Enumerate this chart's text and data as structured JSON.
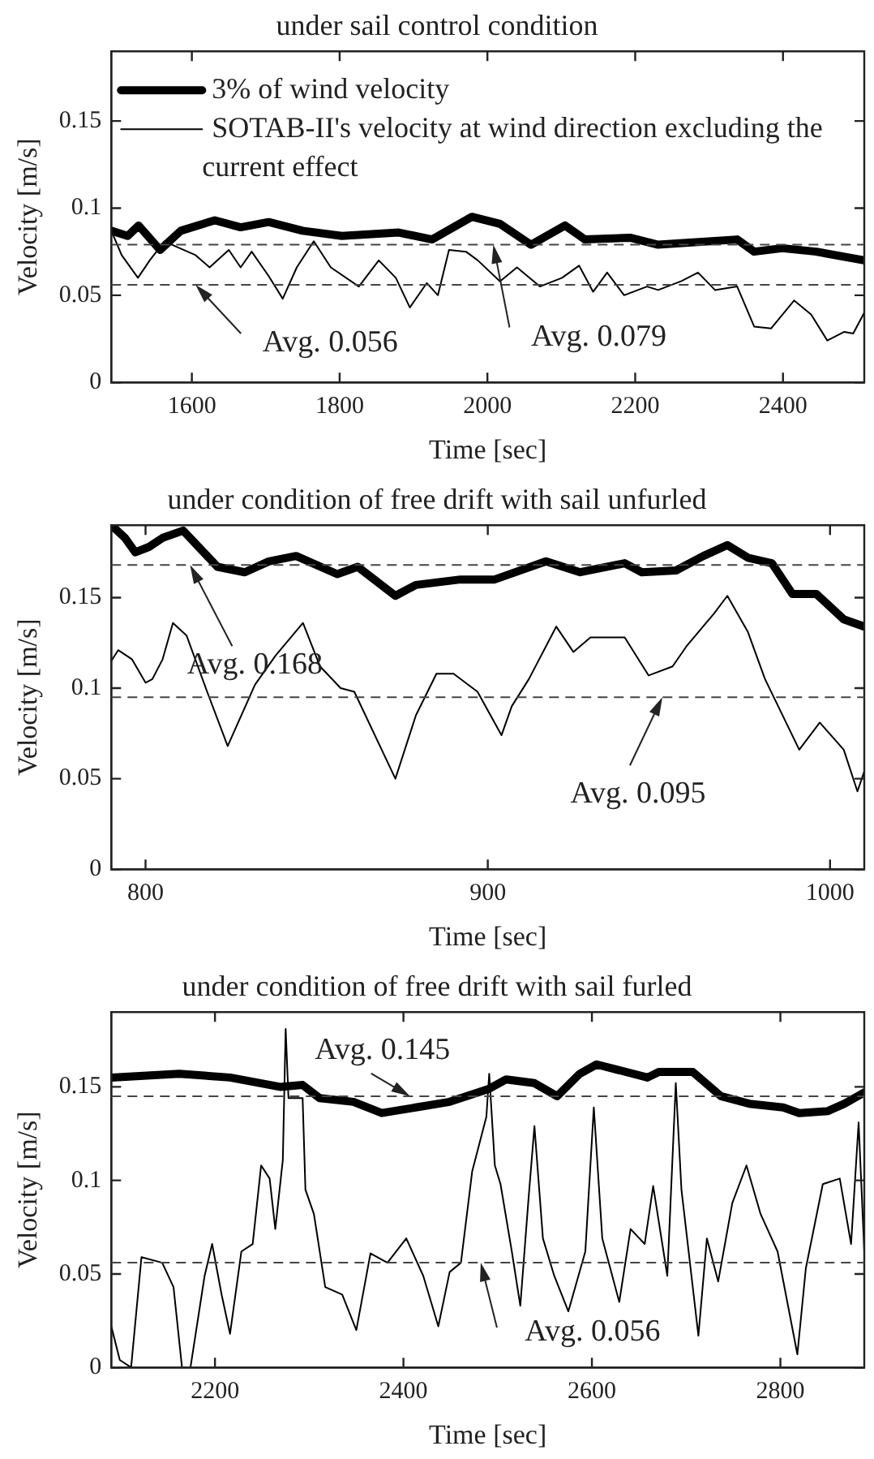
{
  "chart_data": [
    {
      "type": "line",
      "title": "under sail control condition",
      "xlabel": "Time [sec]",
      "ylabel": "Velocity [m/s]",
      "xlim": [
        1491,
        2510
      ],
      "xticks": [
        1600,
        1800,
        2000,
        2200,
        2400
      ],
      "ylim": [
        0,
        0.19
      ],
      "yticks": [
        0,
        0.05,
        0.1,
        0.15
      ],
      "legend": "top left",
      "marker": "none",
      "line_style": "solid",
      "series": [
        {
          "name": "3% of wind velocity",
          "color": "#000000",
          "x": [
            1491,
            1513,
            1528,
            1557,
            1585,
            1631,
            1666,
            1704,
            1750,
            1803,
            1880,
            1925,
            1979,
            2017,
            2059,
            2105,
            2132,
            2193,
            2231,
            2338,
            2361,
            2399,
            2445,
            2510
          ],
          "values": [
            0.087,
            0.084,
            0.09,
            0.076,
            0.087,
            0.093,
            0.089,
            0.092,
            0.087,
            0.084,
            0.086,
            0.082,
            0.095,
            0.091,
            0.079,
            0.09,
            0.082,
            0.083,
            0.079,
            0.082,
            0.075,
            0.077,
            0.075,
            0.07
          ]
        },
        {
          "name": "SOTAB-II's velocity at wind direction excluding the current effect",
          "color": "#000000",
          "x": [
            1491,
            1505,
            1527,
            1543,
            1563,
            1578,
            1605,
            1624,
            1650,
            1666,
            1681,
            1704,
            1723,
            1742,
            1765,
            1788,
            1826,
            1853,
            1876,
            1895,
            1918,
            1933,
            1948,
            1971,
            1987,
            2017,
            2040,
            2071,
            2101,
            2124,
            2143,
            2162,
            2185,
            2216,
            2231,
            2262,
            2285,
            2308,
            2338,
            2361,
            2384,
            2415,
            2438,
            2460,
            2483,
            2495,
            2510
          ],
          "values": [
            0.087,
            0.073,
            0.06,
            0.07,
            0.081,
            0.078,
            0.073,
            0.066,
            0.076,
            0.066,
            0.075,
            0.061,
            0.048,
            0.066,
            0.081,
            0.066,
            0.055,
            0.07,
            0.06,
            0.043,
            0.057,
            0.05,
            0.076,
            0.075,
            0.07,
            0.058,
            0.066,
            0.055,
            0.06,
            0.067,
            0.052,
            0.063,
            0.05,
            0.055,
            0.053,
            0.058,
            0.063,
            0.053,
            0.055,
            0.032,
            0.031,
            0.047,
            0.039,
            0.024,
            0.029,
            0.028,
            0.04
          ]
        }
      ],
      "ref_lines": [
        {
          "axis": "y",
          "value": 0.079,
          "color": "#444444",
          "line_style": "dashed"
        },
        {
          "axis": "y",
          "value": 0.056,
          "color": "#444444",
          "line_style": "dashed"
        }
      ],
      "annotations": [
        {
          "text": "Avg. 0.056",
          "x": 1605,
          "y": 0.056
        },
        {
          "text": "Avg. 0.079",
          "x": 2008,
          "y": 0.079
        }
      ]
    },
    {
      "type": "line",
      "title": "under condition of free drift with sail unfurled",
      "xlabel": "Time [sec]",
      "ylabel": "Velocity [m/s]",
      "xlim": [
        790,
        1010
      ],
      "xticks": [
        800,
        900,
        1000
      ],
      "ylim": [
        0,
        0.19
      ],
      "yticks": [
        0,
        0.05,
        0.1,
        0.15
      ],
      "marker": "none",
      "line_style": "solid",
      "series": [
        {
          "color": "#000000",
          "x": [
            790,
            794,
            797,
            801,
            805,
            811,
            816,
            821,
            829,
            836,
            844,
            856,
            862,
            873,
            879,
            892,
            902,
            917,
            927,
            940,
            945,
            955,
            963,
            970,
            976,
            983,
            989,
            996,
            1004,
            1010
          ],
          "values": [
            0.19,
            0.183,
            0.175,
            0.178,
            0.183,
            0.187,
            0.177,
            0.167,
            0.164,
            0.17,
            0.173,
            0.163,
            0.167,
            0.151,
            0.157,
            0.16,
            0.16,
            0.17,
            0.164,
            0.169,
            0.164,
            0.165,
            0.173,
            0.179,
            0.172,
            0.169,
            0.152,
            0.152,
            0.138,
            0.134
          ]
        },
        {
          "color": "#000000",
          "x": [
            790,
            792,
            796,
            800,
            802,
            805,
            808,
            812,
            818,
            824,
            832,
            838,
            846,
            851,
            857,
            861,
            873,
            879,
            885,
            890,
            897,
            904,
            907,
            912,
            920,
            925,
            930,
            940,
            947,
            954,
            958,
            966,
            970,
            976,
            981,
            991,
            997,
            1004,
            1008,
            1010
          ],
          "values": [
            0.115,
            0.121,
            0.116,
            0.103,
            0.105,
            0.116,
            0.136,
            0.129,
            0.098,
            0.068,
            0.102,
            0.118,
            0.136,
            0.112,
            0.1,
            0.098,
            0.05,
            0.085,
            0.108,
            0.108,
            0.098,
            0.074,
            0.09,
            0.105,
            0.134,
            0.12,
            0.128,
            0.128,
            0.107,
            0.112,
            0.123,
            0.141,
            0.151,
            0.131,
            0.105,
            0.066,
            0.081,
            0.066,
            0.043,
            0.054
          ]
        }
      ],
      "ref_lines": [
        {
          "axis": "y",
          "value": 0.168,
          "color": "#444444",
          "line_style": "dashed"
        },
        {
          "axis": "y",
          "value": 0.095,
          "color": "#444444",
          "line_style": "dashed"
        }
      ],
      "annotations": [
        {
          "text": "Avg. 0.168",
          "x": 813,
          "y": 0.168
        },
        {
          "text": "Avg. 0.095",
          "x": 951,
          "y": 0.095
        }
      ]
    },
    {
      "type": "line",
      "title": "under condition of free drift with sail furled",
      "xlabel": "Time [sec]",
      "ylabel": "Velocity [m/s]",
      "xlim": [
        2090,
        2889
      ],
      "xticks": [
        2200,
        2400,
        2600,
        2800
      ],
      "ylim": [
        0,
        0.19
      ],
      "yticks": [
        0,
        0.05,
        0.1,
        0.15
      ],
      "marker": "none",
      "line_style": "solid",
      "series": [
        {
          "color": "#000000",
          "x": [
            2090,
            2162,
            2216,
            2269,
            2293,
            2311,
            2347,
            2377,
            2413,
            2449,
            2491,
            2509,
            2539,
            2563,
            2587,
            2605,
            2659,
            2671,
            2707,
            2737,
            2767,
            2803,
            2820,
            2850,
            2868,
            2889
          ],
          "values": [
            0.155,
            0.157,
            0.155,
            0.15,
            0.151,
            0.144,
            0.142,
            0.136,
            0.139,
            0.142,
            0.149,
            0.154,
            0.152,
            0.145,
            0.157,
            0.162,
            0.155,
            0.158,
            0.158,
            0.145,
            0.141,
            0.139,
            0.136,
            0.137,
            0.141,
            0.147
          ]
        },
        {
          "color": "#000000",
          "x": [
            2090,
            2099,
            2111,
            2122,
            2144,
            2156,
            2165,
            2174,
            2189,
            2197,
            2207,
            2216,
            2228,
            2240,
            2249,
            2258,
            2264,
            2272,
            2275,
            2278,
            2293,
            2296,
            2305,
            2317,
            2335,
            2350,
            2365,
            2383,
            2403,
            2421,
            2437,
            2449,
            2461,
            2473,
            2488,
            2491,
            2497,
            2503,
            2515,
            2524,
            2533,
            2539,
            2548,
            2560,
            2575,
            2593,
            2602,
            2611,
            2629,
            2641,
            2656,
            2665,
            2680,
            2689,
            2695,
            2713,
            2722,
            2734,
            2749,
            2764,
            2779,
            2797,
            2818,
            2827,
            2845,
            2863,
            2875,
            2883,
            2889
          ],
          "values": [
            0.022,
            0.004,
            0,
            0.059,
            0.056,
            0.043,
            0,
            0,
            0.049,
            0.066,
            0.039,
            0.018,
            0.062,
            0.066,
            0.108,
            0.101,
            0.074,
            0.111,
            0.181,
            0.144,
            0.144,
            0.095,
            0.082,
            0.043,
            0.039,
            0.02,
            0.061,
            0.056,
            0.069,
            0.049,
            0.022,
            0.051,
            0.056,
            0.105,
            0.134,
            0.157,
            0.108,
            0.098,
            0.062,
            0.033,
            0.092,
            0.129,
            0.069,
            0.049,
            0.03,
            0.062,
            0.139,
            0.069,
            0.035,
            0.074,
            0.066,
            0.097,
            0.049,
            0.152,
            0.095,
            0.017,
            0.069,
            0.046,
            0.088,
            0.108,
            0.082,
            0.062,
            0.007,
            0.053,
            0.098,
            0.101,
            0.066,
            0.131,
            0.062
          ]
        }
      ],
      "ref_lines": [
        {
          "axis": "y",
          "value": 0.145,
          "color": "#444444",
          "line_style": "dashed"
        },
        {
          "axis": "y",
          "value": 0.056,
          "color": "#444444",
          "line_style": "dashed"
        }
      ],
      "annotations": [
        {
          "text": "Avg. 0.145",
          "x": 2407,
          "y": 0.145
        },
        {
          "text": "Avg. 0.056",
          "x": 2482,
          "y": 0.056
        }
      ]
    }
  ]
}
